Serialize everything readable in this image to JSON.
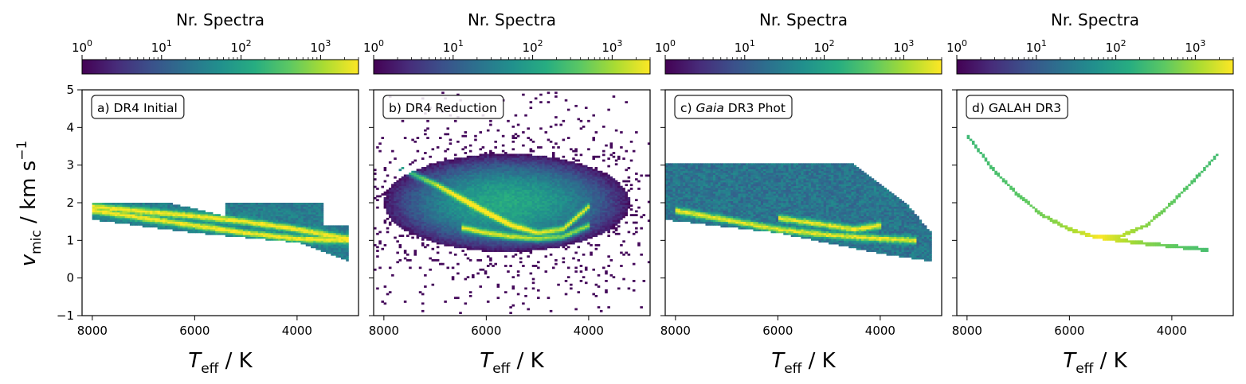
{
  "figure": {
    "ylabel_symbol": "v",
    "ylabel_sub": "mic",
    "ylabel_units": " / km s",
    "ylabel_exp": "−1",
    "xlabel_symbol": "T",
    "xlabel_sub": "eff",
    "xlabel_units": " / K",
    "colorbar_label": "Nr. Spectra",
    "colorbar_ticks": [
      "10",
      "10",
      "10",
      "10"
    ],
    "colorbar_tick_exps": [
      "0",
      "1",
      "2",
      "3"
    ],
    "x_ticks": [
      "8000",
      "6000",
      "4000"
    ],
    "y_ticks": [
      "5",
      "4",
      "3",
      "2",
      "1",
      "0",
      "−1"
    ]
  },
  "colors": {
    "viridis": [
      "#440154",
      "#472c7a",
      "#3b518b",
      "#2c718e",
      "#21908d",
      "#27ad81",
      "#5cc863",
      "#aadc32",
      "#fde725"
    ]
  },
  "chart_data": [
    {
      "type": "heatmap",
      "panel_label": "a) DR4 Initial",
      "xlim": [
        8200,
        2800
      ],
      "ylim": [
        -1,
        5
      ],
      "colorbar": {
        "scale": "log",
        "range": [
          1,
          3000
        ]
      },
      "ridges": [
        {
          "teff": [
            8000,
            6000,
            5000,
            4000,
            3000
          ],
          "vmic": [
            1.8,
            1.4,
            1.2,
            1.05,
            1.0
          ]
        },
        {
          "teff": [
            8000,
            6000,
            5000,
            4000,
            3000
          ],
          "vmic": [
            1.9,
            1.65,
            1.5,
            1.3,
            1.05
          ]
        }
      ]
    },
    {
      "type": "heatmap",
      "panel_label": "b) DR4 Reduction",
      "xlim": [
        8200,
        2800
      ],
      "ylim": [
        -1,
        5
      ],
      "colorbar": {
        "scale": "log",
        "range": [
          1,
          3000
        ]
      },
      "ridges": [
        {
          "teff": [
            7800,
            7000,
            6000,
            5500,
            5000,
            4500,
            4000
          ],
          "vmic": [
            3.0,
            2.5,
            1.75,
            1.4,
            1.2,
            1.3,
            1.9
          ]
        },
        {
          "teff": [
            6500,
            6000,
            5500,
            5000,
            4500,
            4000
          ],
          "vmic": [
            1.35,
            1.2,
            1.1,
            1.05,
            1.1,
            1.4
          ]
        }
      ]
    },
    {
      "type": "heatmap",
      "panel_label_prefix": "c) ",
      "panel_label_italic": "Gaia",
      "panel_label_suffix": " DR3 Phot",
      "xlim": [
        8200,
        2800
      ],
      "ylim": [
        -1,
        5
      ],
      "colorbar": {
        "scale": "log",
        "range": [
          1,
          3000
        ]
      },
      "ridges": [
        {
          "teff": [
            8000,
            7000,
            6000,
            5000,
            4000,
            3300
          ],
          "vmic": [
            1.8,
            1.55,
            1.3,
            1.15,
            1.05,
            1.0
          ]
        },
        {
          "teff": [
            6000,
            5000,
            4500,
            4000
          ],
          "vmic": [
            1.6,
            1.4,
            1.3,
            1.4
          ]
        }
      ]
    },
    {
      "type": "heatmap",
      "panel_label": "d) GALAH DR3",
      "xlim": [
        8200,
        2800
      ],
      "ylim": [
        -1,
        5
      ],
      "colorbar": {
        "scale": "log",
        "range": [
          1,
          3000
        ]
      },
      "ridges": [
        {
          "teff": [
            8000,
            7500,
            7000,
            6500,
            6000,
            5500,
            5000,
            4500,
            4000,
            3500,
            3100
          ],
          "vmic": [
            3.8,
            2.9,
            2.2,
            1.65,
            1.3,
            1.1,
            1.12,
            1.4,
            2.0,
            2.7,
            3.3
          ]
        },
        {
          "teff": [
            5500,
            5000,
            4500,
            4000,
            3500,
            3300
          ],
          "vmic": [
            1.1,
            1.0,
            0.92,
            0.85,
            0.78,
            0.75
          ]
        }
      ]
    }
  ]
}
